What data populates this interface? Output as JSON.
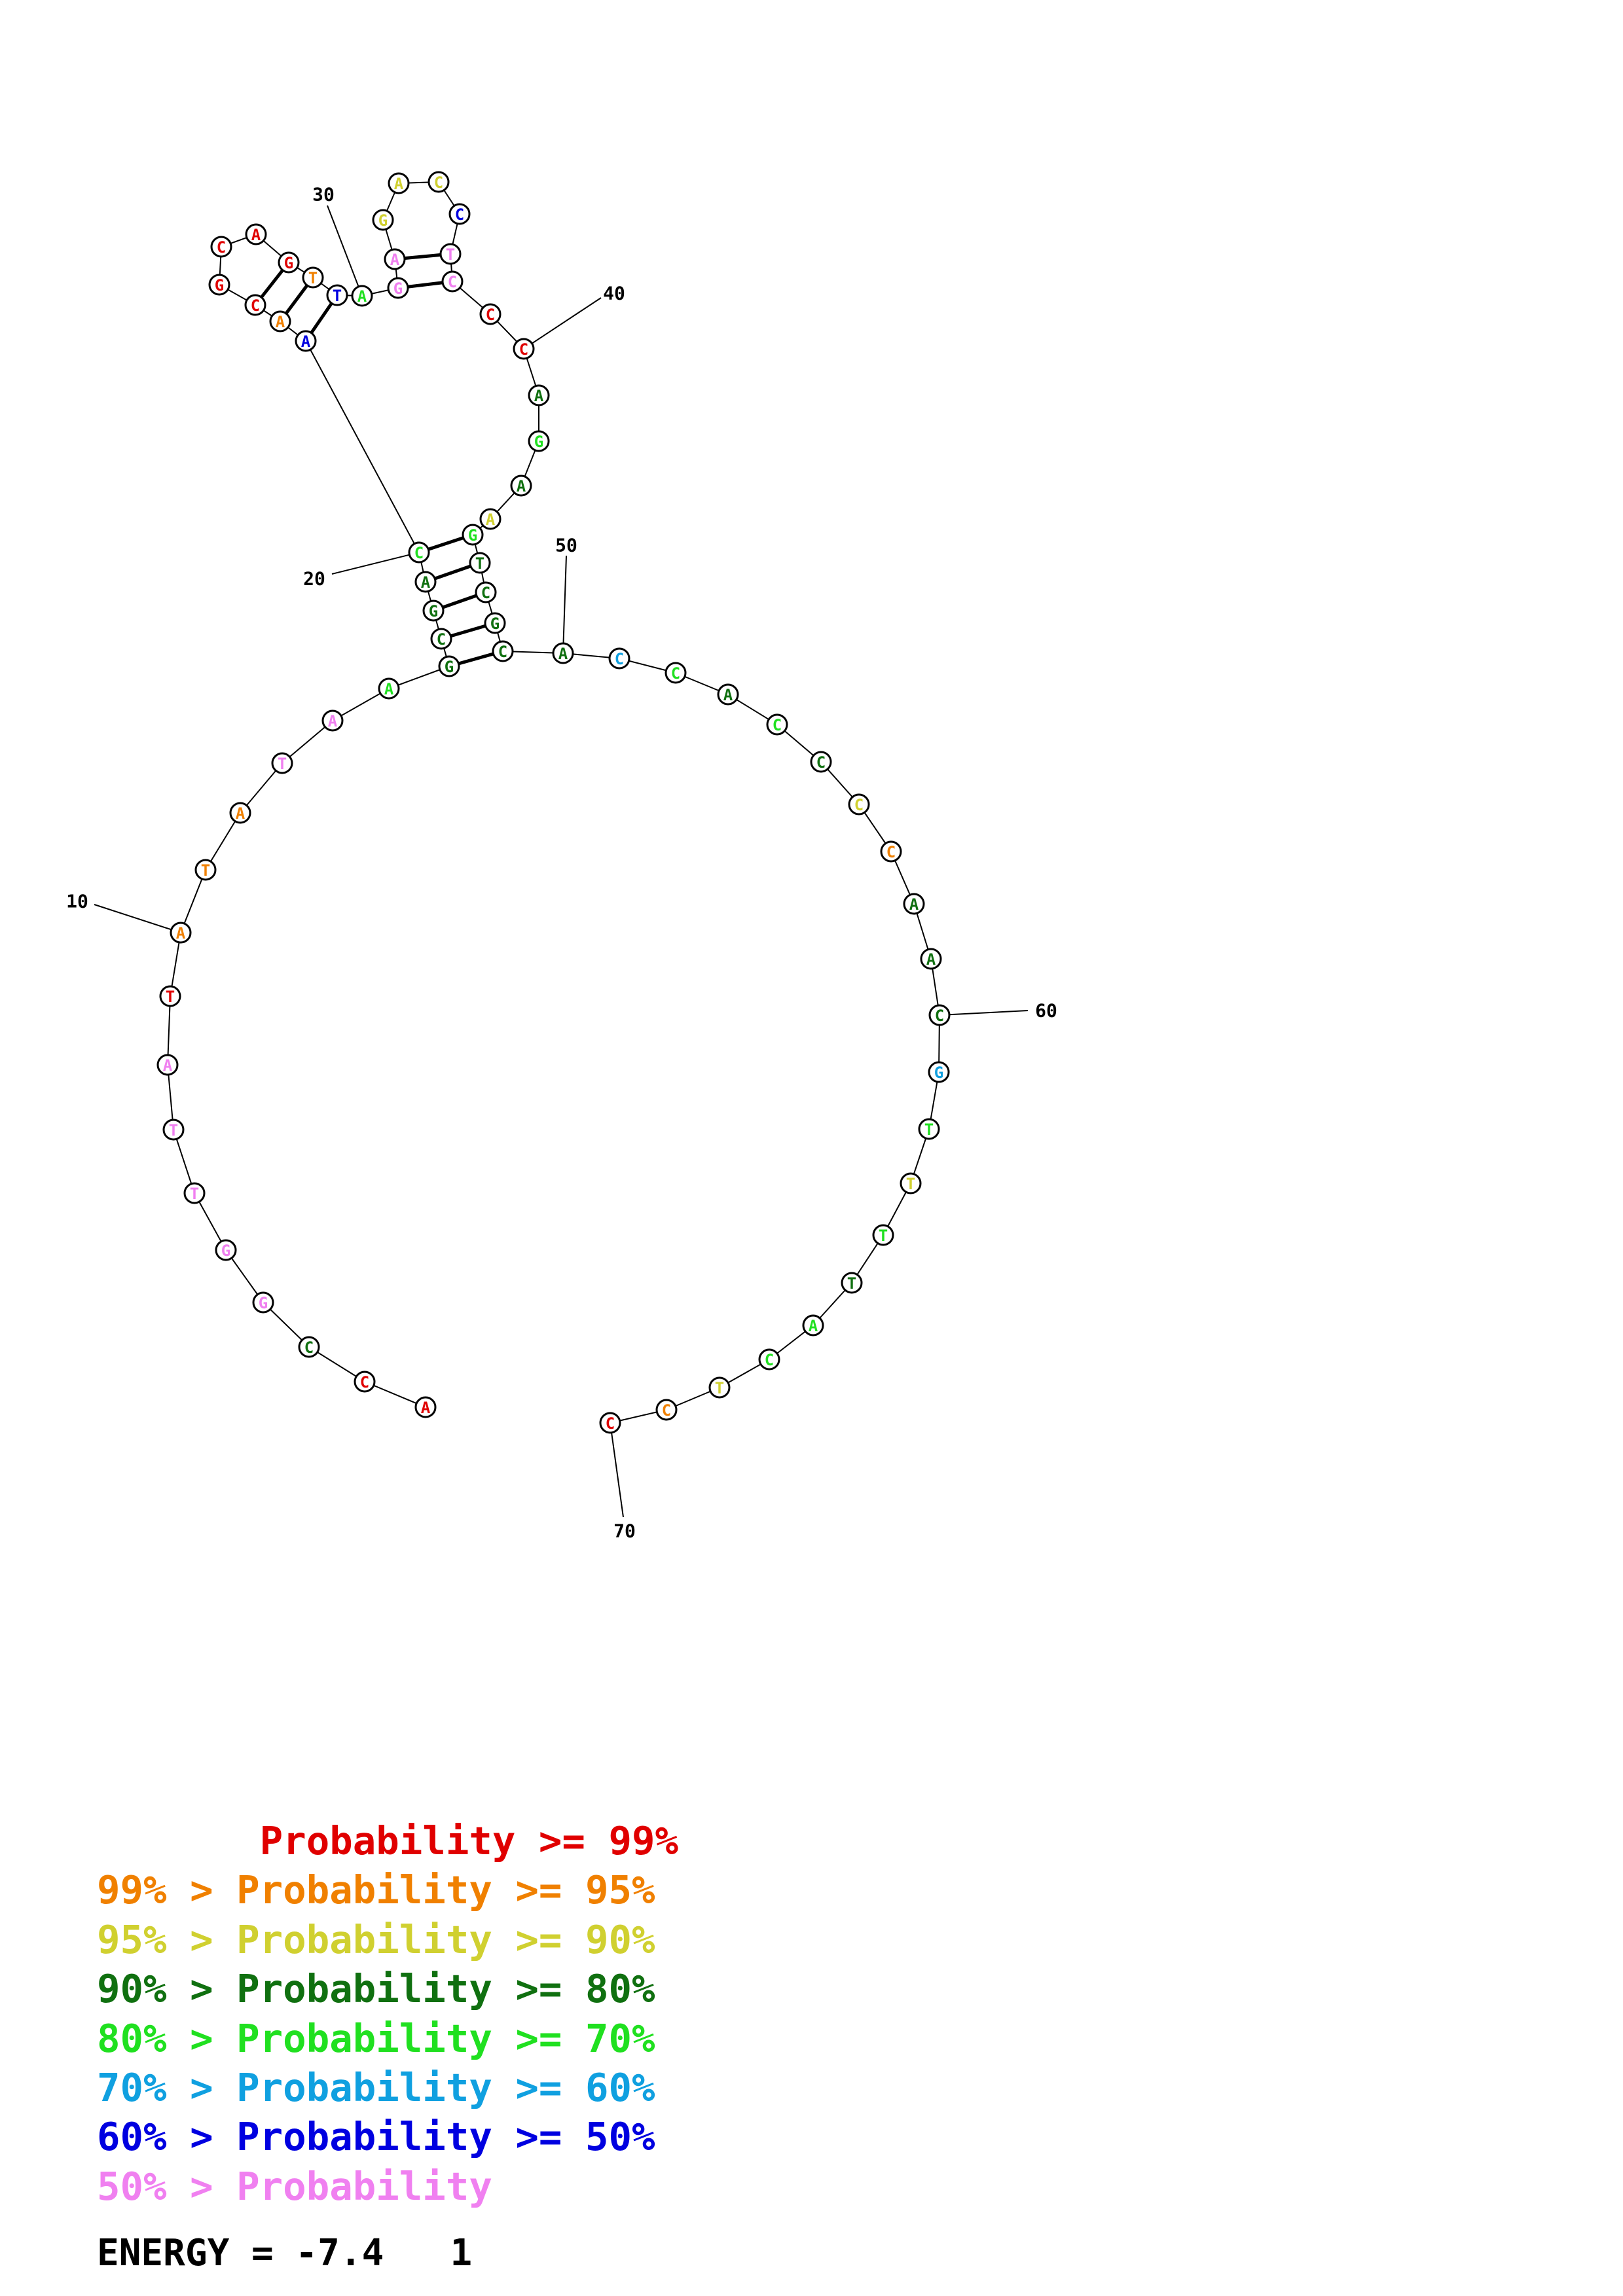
{
  "nucleotides": [
    {
      "n": 1,
      "base": "A",
      "c": "#e00000"
    },
    {
      "n": 2,
      "base": "C",
      "c": "#e00000"
    },
    {
      "n": 3,
      "base": "C",
      "c": "#107010"
    },
    {
      "n": 4,
      "base": "G",
      "c": "#f080f0"
    },
    {
      "n": 5,
      "base": "G",
      "c": "#f080f0"
    },
    {
      "n": 6,
      "base": "T",
      "c": "#f080f0"
    },
    {
      "n": 7,
      "base": "T",
      "c": "#f080f0"
    },
    {
      "n": 8,
      "base": "A",
      "c": "#f080f0"
    },
    {
      "n": 9,
      "base": "T",
      "c": "#e00000"
    },
    {
      "n": 10,
      "base": "A",
      "c": "#f08000"
    },
    {
      "n": 11,
      "base": "T",
      "c": "#f08000"
    },
    {
      "n": 12,
      "base": "A",
      "c": "#f08000"
    },
    {
      "n": 13,
      "base": "T",
      "c": "#f080f0"
    },
    {
      "n": 14,
      "base": "A",
      "c": "#f080f0"
    },
    {
      "n": 15,
      "base": "A",
      "c": "#20e020"
    },
    {
      "n": 16,
      "base": "G",
      "c": "#107010"
    },
    {
      "n": 17,
      "base": "C",
      "c": "#107010"
    },
    {
      "n": 18,
      "base": "G",
      "c": "#107010"
    },
    {
      "n": 19,
      "base": "A",
      "c": "#107010"
    },
    {
      "n": 20,
      "base": "C",
      "c": "#20e020"
    },
    {
      "n": 21,
      "base": "A",
      "c": "#0000e0"
    },
    {
      "n": 22,
      "base": "A",
      "c": "#f08000"
    },
    {
      "n": 23,
      "base": "C",
      "c": "#e00000"
    },
    {
      "n": 24,
      "base": "G",
      "c": "#e00000"
    },
    {
      "n": 25,
      "base": "C",
      "c": "#e00000"
    },
    {
      "n": 26,
      "base": "A",
      "c": "#e00000"
    },
    {
      "n": 27,
      "base": "G",
      "c": "#e00000"
    },
    {
      "n": 28,
      "base": "T",
      "c": "#f08000"
    },
    {
      "n": 29,
      "base": "T",
      "c": "#0000e0"
    },
    {
      "n": 30,
      "base": "A",
      "c": "#20e020"
    },
    {
      "n": 31,
      "base": "G",
      "c": "#f080f0"
    },
    {
      "n": 32,
      "base": "A",
      "c": "#f080f0"
    },
    {
      "n": 33,
      "base": "G",
      "c": "#d0d030"
    },
    {
      "n": 34,
      "base": "A",
      "c": "#d0d030"
    },
    {
      "n": 35,
      "base": "C",
      "c": "#d0d030"
    },
    {
      "n": 36,
      "base": "C",
      "c": "#0000e0"
    },
    {
      "n": 37,
      "base": "T",
      "c": "#f080f0"
    },
    {
      "n": 38,
      "base": "C",
      "c": "#f080f0"
    },
    {
      "n": 39,
      "base": "C",
      "c": "#e00000"
    },
    {
      "n": 40,
      "base": "C",
      "c": "#e00000"
    },
    {
      "n": 41,
      "base": "A",
      "c": "#107010"
    },
    {
      "n": 42,
      "base": "G",
      "c": "#20e020"
    },
    {
      "n": 43,
      "base": "A",
      "c": "#107010"
    },
    {
      "n": 44,
      "base": "A",
      "c": "#d0d030"
    },
    {
      "n": 45,
      "base": "G",
      "c": "#20e020"
    },
    {
      "n": 46,
      "base": "T",
      "c": "#107010"
    },
    {
      "n": 47,
      "base": "C",
      "c": "#107010"
    },
    {
      "n": 48,
      "base": "G",
      "c": "#107010"
    },
    {
      "n": 49,
      "base": "C",
      "c": "#107010"
    },
    {
      "n": 50,
      "base": "A",
      "c": "#107010"
    },
    {
      "n": 51,
      "base": "C",
      "c": "#10a0e0"
    },
    {
      "n": 52,
      "base": "C",
      "c": "#20e020"
    },
    {
      "n": 53,
      "base": "A",
      "c": "#107010"
    },
    {
      "n": 54,
      "base": "C",
      "c": "#20e020"
    },
    {
      "n": 55,
      "base": "C",
      "c": "#107010"
    },
    {
      "n": 56,
      "base": "C",
      "c": "#d0d030"
    },
    {
      "n": 57,
      "base": "C",
      "c": "#f08000"
    },
    {
      "n": 58,
      "base": "A",
      "c": "#107010"
    },
    {
      "n": 59,
      "base": "A",
      "c": "#107010"
    },
    {
      "n": 60,
      "base": "C",
      "c": "#107010"
    },
    {
      "n": 61,
      "base": "G",
      "c": "#10a0e0"
    },
    {
      "n": 62,
      "base": "T",
      "c": "#20e020"
    },
    {
      "n": 63,
      "base": "T",
      "c": "#d0d030"
    },
    {
      "n": 64,
      "base": "T",
      "c": "#20e020"
    },
    {
      "n": 65,
      "base": "T",
      "c": "#107010"
    },
    {
      "n": 66,
      "base": "A",
      "c": "#20e020"
    },
    {
      "n": 67,
      "base": "C",
      "c": "#20e020"
    },
    {
      "n": 68,
      "base": "T",
      "c": "#d0d030"
    },
    {
      "n": 69,
      "base": "C",
      "c": "#f08000"
    },
    {
      "n": 70,
      "base": "C",
      "c": "#e00000"
    }
  ],
  "base_pairs": [
    [
      16,
      49
    ],
    [
      17,
      48
    ],
    [
      18,
      47
    ],
    [
      19,
      46
    ],
    [
      20,
      45
    ],
    [
      21,
      29
    ],
    [
      22,
      28
    ],
    [
      23,
      27
    ],
    [
      31,
      38
    ],
    [
      32,
      37
    ]
  ],
  "position_labels": [
    "10",
    "20",
    "30",
    "40",
    "50",
    "60",
    "70"
  ],
  "legend": [
    {
      "prefix": "       ",
      "text": "Probability >= 99%",
      "color": "#e00000"
    },
    {
      "prefix": "99% > ",
      "text": "Probability >= 95%",
      "color": "#f08000"
    },
    {
      "prefix": "95% > ",
      "text": "Probability >= 90%",
      "color": "#d0d030"
    },
    {
      "prefix": "90% > ",
      "text": "Probability >= 80%",
      "color": "#107010"
    },
    {
      "prefix": "80% > ",
      "text": "Probability >= 70%",
      "color": "#20e020"
    },
    {
      "prefix": "70% > ",
      "text": "Probability >= 60%",
      "color": "#10a0e0"
    },
    {
      "prefix": "60% > ",
      "text": "Probability >= 50%",
      "color": "#0000e0"
    },
    {
      "prefix": "50% > ",
      "text": "Probability",
      "color": "#f080f0"
    }
  ],
  "energy_text": "ENERGY = -7.4   1"
}
